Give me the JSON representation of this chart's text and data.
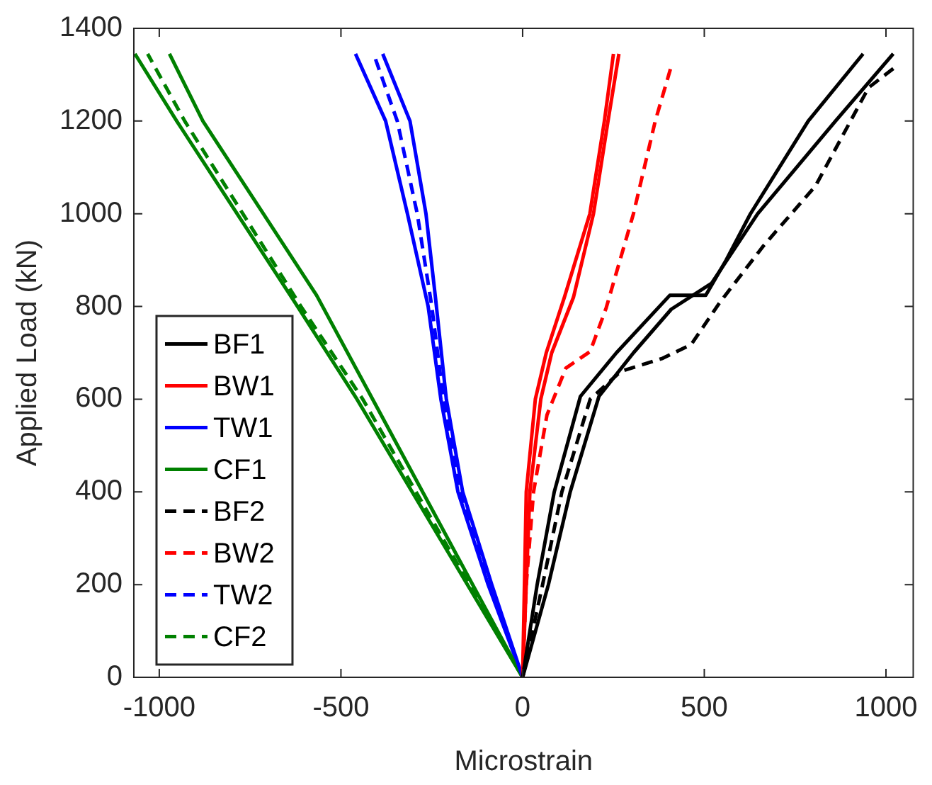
{
  "chart_data": {
    "type": "line",
    "xlabel": "Microstrain",
    "ylabel": "Applied Load (kN)",
    "xlim": [
      -1070,
      1075
    ],
    "xticks": [
      -1000,
      -500,
      0,
      500,
      1000
    ],
    "ylim": [
      0,
      1400
    ],
    "yticks": [
      0,
      200,
      400,
      600,
      800,
      1000,
      1200,
      1400
    ],
    "grid": false,
    "legend": "bottom left",
    "marker": "none",
    "series": [
      {
        "name": "BF1",
        "color": "#000000",
        "line_style": "solid",
        "x": [
          0,
          40,
          87,
          159,
          258,
          405,
          504,
          560,
          627,
          786,
          937
        ],
        "values": [
          0,
          200,
          400,
          606,
          700,
          824,
          824,
          900,
          1000,
          1200,
          1345
        ]
      },
      {
        "name": "BW1",
        "color": "#ff0000",
        "line_style": "solid",
        "x": [
          0,
          5,
          10,
          35,
          65,
          115,
          185,
          225,
          250
        ],
        "values": [
          0,
          200,
          400,
          600,
          700,
          820,
          1000,
          1200,
          1345
        ]
      },
      {
        "name": "TW1",
        "color": "#0000ff",
        "line_style": "solid",
        "x": [
          0,
          -85,
          -165,
          -210,
          -240,
          -266,
          -310,
          -385
        ],
        "values": [
          0,
          200,
          400,
          600,
          820,
          1000,
          1200,
          1345
        ]
      },
      {
        "name": "CF1",
        "color": "#008000",
        "line_style": "solid",
        "x": [
          0,
          -417,
          -567,
          -880,
          -972
        ],
        "values": [
          0,
          606,
          824,
          1200,
          1345
        ]
      },
      {
        "name": "BF2",
        "color": "#000000",
        "line_style": "dashed",
        "x": [
          0,
          55,
          108,
          186,
          270,
          385,
          464,
          543,
          662,
          806,
          952,
          1028
        ],
        "values": [
          0,
          200,
          400,
          600,
          660,
          688,
          718,
          809,
          930,
          1060,
          1272,
          1318
        ]
      },
      {
        "name": "BW2",
        "color": "#ff0000",
        "line_style": "dashed",
        "x": [
          0,
          10,
          30,
          67,
          119,
          186,
          230,
          305,
          365,
          409
        ],
        "values": [
          0,
          200,
          400,
          566,
          667,
          703,
          797,
          1000,
          1200,
          1318
        ]
      },
      {
        "name": "TW2",
        "color": "#0000ff",
        "line_style": "dashed",
        "x": [
          0,
          -90,
          -172,
          -218,
          -250,
          -290,
          -345,
          -410
        ],
        "values": [
          0,
          200,
          400,
          600,
          800,
          1000,
          1200,
          1345
        ]
      },
      {
        "name": "CF2",
        "color": "#008000",
        "line_style": "dashed",
        "x": [
          0,
          -440,
          -610,
          -930,
          -1032
        ],
        "values": [
          0,
          600,
          800,
          1200,
          1345
        ]
      },
      {
        "color": "#000000",
        "line_style": "solid",
        "x": [
          0,
          71,
          131,
          210,
          305,
          409,
          520,
          647,
          861,
          1020
        ],
        "values": [
          0,
          200,
          400,
          606,
          700,
          794,
          850,
          1000,
          1200,
          1345
        ]
      },
      {
        "color": "#ff0000",
        "line_style": "solid",
        "x": [
          0,
          10,
          20,
          50,
          80,
          140,
          195,
          235,
          265
        ],
        "values": [
          0,
          200,
          400,
          600,
          700,
          820,
          1000,
          1200,
          1345
        ]
      },
      {
        "color": "#0000ff",
        "line_style": "solid",
        "x": [
          0,
          -95,
          -178,
          -225,
          -260,
          -317,
          -377,
          -460
        ],
        "values": [
          0,
          200,
          400,
          600,
          800,
          1000,
          1200,
          1345
        ]
      },
      {
        "color": "#008000",
        "line_style": "solid",
        "x": [
          0,
          -456,
          -627,
          -952,
          -1067
        ],
        "values": [
          0,
          600,
          809,
          1200,
          1345
        ]
      }
    ]
  }
}
